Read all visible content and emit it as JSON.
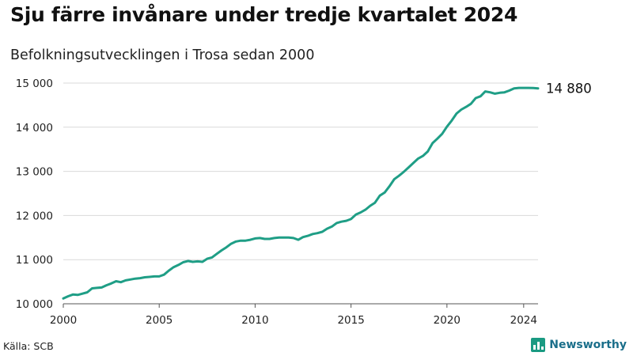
{
  "title": "Sju färre invånare under tredje kvartalet 2024",
  "subtitle": "Befolkningsutvecklingen i Trosa sedan 2000",
  "source": "Källa: SCB",
  "brand": "Newsworthy",
  "icons": {
    "brand_logo": "bar-chart-icon"
  },
  "colors": {
    "line": "#1f9e86",
    "grid": "#d9d9d9",
    "brand": "#1a6e8a",
    "logo": "#1a9a82"
  },
  "end_label": "14 880",
  "chart_data": {
    "type": "line",
    "title": "Sju färre invånare under tredje kvartalet 2024",
    "subtitle": "Befolkningsutvecklingen i Trosa sedan 2000",
    "xlabel": "",
    "ylabel": "",
    "xlim": [
      2000,
      2024.75
    ],
    "ylim": [
      10000,
      15000
    ],
    "grid": true,
    "legend": "none",
    "x_ticks": [
      2000,
      2005,
      2010,
      2015,
      2020,
      2024
    ],
    "x_tick_labels": [
      "2000",
      "2005",
      "2010",
      "2015",
      "2020",
      "2024"
    ],
    "y_ticks": [
      10000,
      11000,
      12000,
      13000,
      14000,
      15000
    ],
    "y_tick_labels": [
      "10 000",
      "11 000",
      "12 000",
      "13 000",
      "14 000",
      "15 000"
    ],
    "series": [
      {
        "x": [
          2000,
          2000.25,
          2000.5,
          2000.75,
          2001,
          2001.25,
          2001.5,
          2001.75,
          2002,
          2002.25,
          2002.5,
          2002.75,
          2003,
          2003.25,
          2003.5,
          2003.75,
          2004,
          2004.25,
          2004.5,
          2004.75,
          2005,
          2005.25,
          2005.5,
          2005.75,
          2006,
          2006.25,
          2006.5,
          2006.75,
          2007,
          2007.25,
          2007.5,
          2007.75,
          2008,
          2008.25,
          2008.5,
          2008.75,
          2009,
          2009.25,
          2009.5,
          2009.75,
          2010,
          2010.25,
          2010.5,
          2010.75,
          2011,
          2011.25,
          2011.5,
          2011.75,
          2012,
          2012.25,
          2012.5,
          2012.75,
          2013,
          2013.25,
          2013.5,
          2013.75,
          2014,
          2014.25,
          2014.5,
          2014.75,
          2015,
          2015.25,
          2015.5,
          2015.75,
          2016,
          2016.25,
          2016.5,
          2016.75,
          2017,
          2017.25,
          2017.5,
          2017.75,
          2018,
          2018.25,
          2018.5,
          2018.75,
          2019,
          2019.25,
          2019.5,
          2019.75,
          2020,
          2020.25,
          2020.5,
          2020.75,
          2021,
          2021.25,
          2021.5,
          2021.75,
          2022,
          2022.25,
          2022.5,
          2022.75,
          2023,
          2023.25,
          2023.5,
          2023.75,
          2024,
          2024.25,
          2024.5,
          2024.75
        ],
        "values": [
          10120,
          10170,
          10210,
          10200,
          10230,
          10260,
          10350,
          10360,
          10370,
          10420,
          10460,
          10510,
          10490,
          10530,
          10550,
          10570,
          10580,
          10600,
          10610,
          10620,
          10620,
          10660,
          10750,
          10830,
          10880,
          10940,
          10970,
          10950,
          10960,
          10950,
          11020,
          11050,
          11130,
          11210,
          11280,
          11360,
          11410,
          11430,
          11430,
          11450,
          11480,
          11490,
          11470,
          11470,
          11490,
          11500,
          11500,
          11500,
          11490,
          11450,
          11510,
          11540,
          11580,
          11600,
          11630,
          11700,
          11750,
          11830,
          11860,
          11880,
          11920,
          12020,
          12070,
          12130,
          12220,
          12290,
          12450,
          12520,
          12660,
          12820,
          12900,
          12990,
          13090,
          13190,
          13290,
          13350,
          13450,
          13640,
          13740,
          13850,
          14010,
          14150,
          14310,
          14400,
          14460,
          14530,
          14660,
          14700,
          14810,
          14790,
          14760,
          14780,
          14790,
          14830,
          14880,
          14890,
          14890,
          14890,
          14887,
          14880
        ]
      }
    ]
  }
}
